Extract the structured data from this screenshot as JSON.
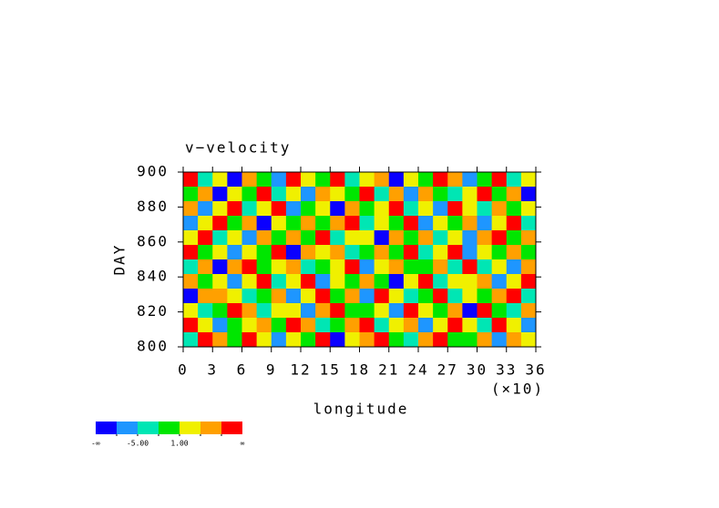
{
  "chart_data": {
    "type": "contour",
    "title": "v−velocity",
    "ylabel": "DAY",
    "xlabel": "longitude",
    "x_scale_note": "(×10)",
    "xlim": [
      0,
      360
    ],
    "ylim": [
      800,
      900
    ],
    "xticks": [
      0,
      {
        "value": 30,
        "label": "3"
      },
      {
        "value": 60,
        "label": "6"
      },
      {
        "value": 90,
        "label": "9"
      },
      {
        "value": 120,
        "label": "12"
      },
      {
        "value": 150,
        "label": "15"
      },
      {
        "value": 180,
        "label": "18"
      },
      {
        "value": 210,
        "label": "21"
      },
      {
        "value": 240,
        "label": "24"
      },
      {
        "value": 270,
        "label": "27"
      },
      {
        "value": 300,
        "label": "30"
      },
      {
        "value": 330,
        "label": "33"
      },
      {
        "value": 360,
        "label": "36"
      }
    ],
    "yticks": [
      800,
      820,
      840,
      860,
      880,
      900
    ],
    "levels": [
      -8,
      -5,
      -2,
      1,
      4,
      7
    ],
    "colors": [
      "#0a00ff",
      "#1e96ff",
      "#00e6b4",
      "#00e600",
      "#f0f000",
      "#ffa000",
      "#ff0000"
    ],
    "colorbar_labels": [
      {
        "value": -5,
        "label": "-5.00"
      },
      {
        "value": 1,
        "label": "1.00"
      }
    ],
    "colorbar_ends": [
      "-∞",
      "∞"
    ],
    "z": [
      [
        9,
        -3,
        2,
        -10,
        5,
        0,
        -6,
        8,
        3,
        -1,
        10,
        -4,
        1,
        6,
        -9,
        2,
        -2,
        7,
        4,
        -7,
        0,
        9,
        -5,
        3
      ],
      [
        -2,
        6,
        -9,
        3,
        0,
        8,
        -4,
        1,
        -7,
        5,
        2,
        -1,
        9,
        -3,
        4,
        -8,
        6,
        0,
        -5,
        2,
        8,
        -2,
        5,
        -9
      ],
      [
        4,
        -8,
        1,
        7,
        -3,
        2,
        9,
        -6,
        0,
        3,
        -10,
        6,
        -2,
        1,
        8,
        -4,
        3,
        -7,
        9,
        1,
        -3,
        6,
        0,
        2
      ],
      [
        -6,
        2,
        8,
        -1,
        5,
        -9,
        3,
        0,
        6,
        -2,
        4,
        9,
        -5,
        2,
        -1,
        7,
        -8,
        3,
        0,
        5,
        -6,
        1,
        8,
        -3
      ],
      [
        1,
        9,
        -4,
        2,
        -7,
        6,
        0,
        4,
        -2,
        8,
        -5,
        1,
        3,
        -9,
        6,
        0,
        5,
        -3,
        2,
        -8,
        4,
        7,
        -1,
        6
      ],
      [
        8,
        -1,
        3,
        -6,
        2,
        0,
        7,
        -9,
        4,
        1,
        6,
        -3,
        0,
        5,
        -2,
        9,
        -4,
        1,
        8,
        -6,
        3,
        -2,
        5,
        0
      ],
      [
        -3,
        5,
        -10,
        4,
        9,
        -2,
        1,
        6,
        -5,
        0,
        3,
        8,
        -7,
        2,
        4,
        -1,
        0,
        6,
        -3,
        9,
        -5,
        2,
        -8,
        4
      ],
      [
        6,
        0,
        2,
        -7,
        3,
        8,
        -4,
        2,
        9,
        -6,
        1,
        -2,
        5,
        0,
        -9,
        3,
        7,
        -4,
        1,
        2,
        6,
        -7,
        3,
        9
      ],
      [
        -9,
        4,
        6,
        1,
        -3,
        0,
        5,
        -8,
        2,
        7,
        -1,
        4,
        -6,
        9,
        2,
        -3,
        0,
        8,
        -5,
        1,
        -2,
        5,
        9,
        -4
      ],
      [
        2,
        -5,
        0,
        8,
        6,
        -4,
        3,
        1,
        -7,
        5,
        9,
        -2,
        0,
        3,
        -6,
        8,
        1,
        -1,
        4,
        -9,
        7,
        0,
        -3,
        6
      ],
      [
        7,
        3,
        -8,
        0,
        2,
        5,
        -1,
        9,
        4,
        -3,
        0,
        6,
        8,
        -5,
        1,
        4,
        -7,
        2,
        9,
        3,
        -4,
        8,
        1,
        -6
      ],
      [
        -4,
        8,
        5,
        -2,
        9,
        1,
        -6,
        3,
        0,
        7,
        -9,
        2,
        4,
        8,
        -1,
        -5,
        6,
        9,
        -2,
        0,
        5,
        -8,
        6,
        2
      ]
    ]
  }
}
